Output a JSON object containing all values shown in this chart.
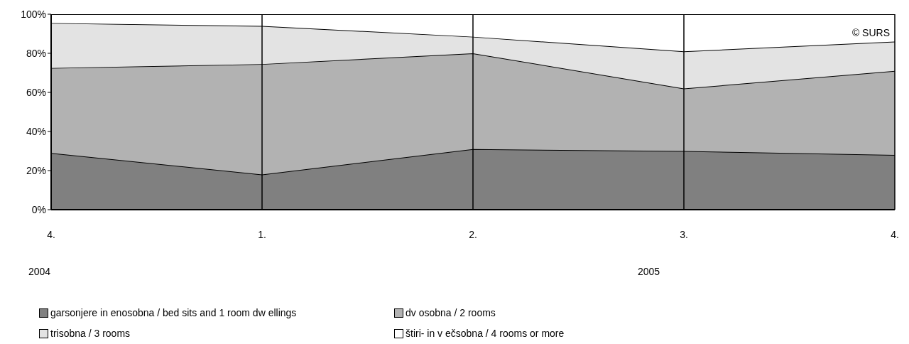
{
  "chart_data": {
    "type": "area",
    "stacked": true,
    "categories": [
      "4.",
      "1.",
      "2.",
      "3.",
      "4."
    ],
    "series": [
      {
        "name": "garsonjere in enosobna / bed sits and 1 room dw ellings",
        "color": "#808080",
        "values": [
          29,
          18,
          31,
          30,
          28
        ]
      },
      {
        "name": "dv osobna / 2 rooms",
        "color": "#b2b2b2",
        "values": [
          43.5,
          56.5,
          49,
          32,
          43
        ]
      },
      {
        "name": "trisobna / 3 rooms",
        "color": "#e3e3e3",
        "values": [
          23,
          19.5,
          8.5,
          19,
          15
        ]
      },
      {
        "name": "štiri- in v ečsobna / 4 rooms or more",
        "color": "#ffffff",
        "values": [
          4.5,
          6,
          11.5,
          19,
          14
        ]
      }
    ],
    "ylim": [
      0,
      100
    ],
    "yticks": [
      {
        "value": 0,
        "label": "0%"
      },
      {
        "value": 20,
        "label": "20%"
      },
      {
        "value": 40,
        "label": "40%"
      },
      {
        "value": 60,
        "label": "60%"
      },
      {
        "value": 80,
        "label": "80%"
      },
      {
        "value": 100,
        "label": "100%"
      }
    ],
    "grid": "x",
    "legend": "bottom",
    "annotations": [
      "© SURS",
      "2004",
      "2005"
    ]
  }
}
